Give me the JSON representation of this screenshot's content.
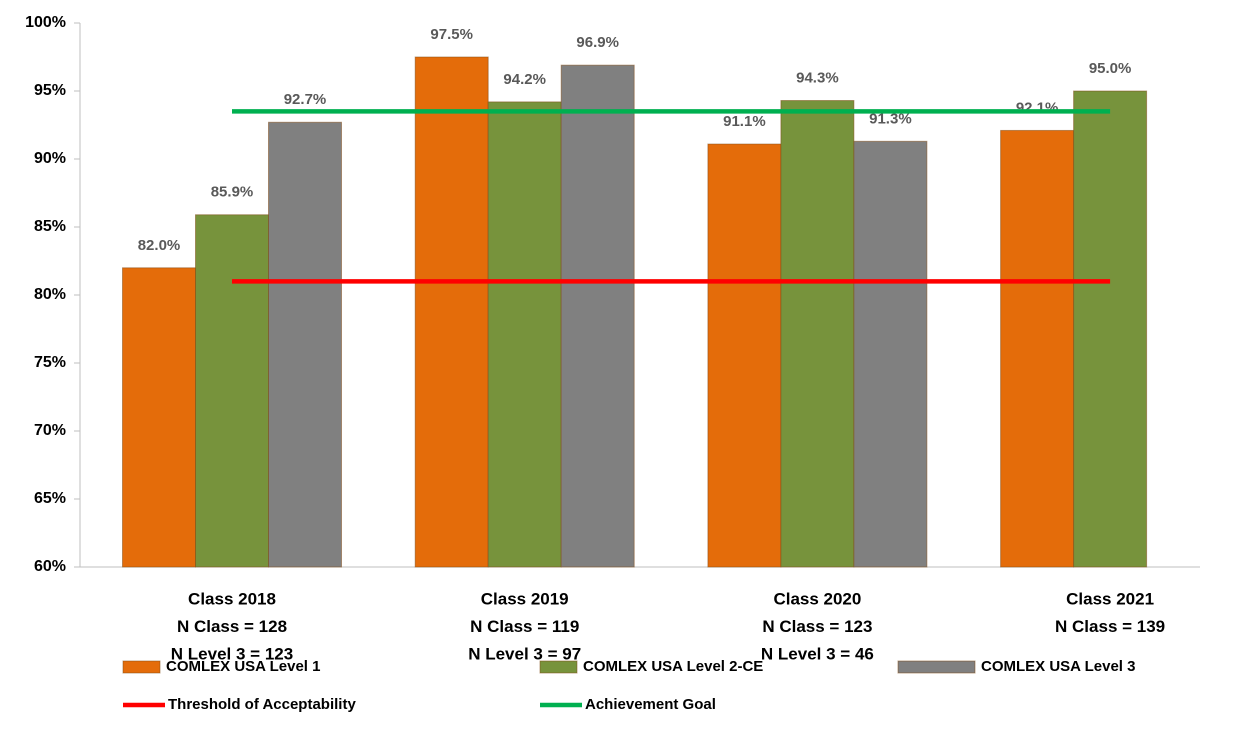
{
  "chart_data": {
    "type": "bar",
    "categories": [
      [
        "Class 2018",
        "N Class = 128",
        "N Level 3 = 123"
      ],
      [
        "Class 2019",
        "N Class = 119",
        "N Level 3 = 97"
      ],
      [
        "Class 2020",
        "N Class = 123",
        "N Level 3 = 46"
      ],
      [
        "Class 2021",
        "N Class = 139"
      ]
    ],
    "series": [
      {
        "name": "COMLEX USA Level 1",
        "color": "#e46c0a",
        "values": [
          82.0,
          97.5,
          91.1,
          92.1
        ],
        "value_labels": [
          "82.0%",
          "97.5%",
          "91.1%",
          "92.1%"
        ]
      },
      {
        "name": "COMLEX USA Level 2-CE",
        "color": "#77933c",
        "values": [
          85.9,
          94.2,
          94.3,
          95.0
        ],
        "value_labels": [
          "85.9%",
          "94.2%",
          "94.3%",
          "95.0%"
        ]
      },
      {
        "name": "COMLEX USA Level 3",
        "color": "#808080",
        "values": [
          92.7,
          96.9,
          91.3,
          null
        ],
        "value_labels": [
          "92.7%",
          "96.9%",
          "91.3%",
          null
        ]
      },
      {
        "name": "Threshold of Acceptability",
        "type": "line",
        "color": "#ff0000",
        "values": [
          81,
          81,
          81,
          81
        ]
      },
      {
        "name": "Achievement  Goal",
        "type": "line",
        "color": "#00b050",
        "values": [
          93.5,
          93.5,
          93.5,
          93.5
        ]
      }
    ],
    "ylim": [
      60,
      100
    ],
    "yticks": [
      {
        "value": 60,
        "label": "60%"
      },
      {
        "value": 65,
        "label": "65%"
      },
      {
        "value": 70,
        "label": "70%"
      },
      {
        "value": 75,
        "label": "75%"
      },
      {
        "value": 80,
        "label": "80%"
      },
      {
        "value": 85,
        "label": "85%"
      },
      {
        "value": 90,
        "label": "90%"
      },
      {
        "value": 95,
        "label": "95%"
      },
      {
        "value": 100,
        "label": "100%"
      }
    ],
    "grid": false,
    "legend": "bottom"
  }
}
